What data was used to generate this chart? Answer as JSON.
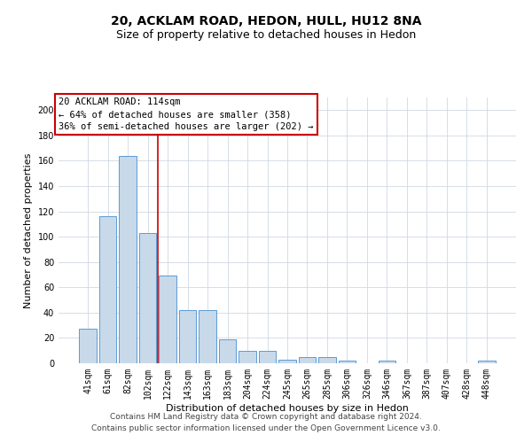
{
  "title": "20, ACKLAM ROAD, HEDON, HULL, HU12 8NA",
  "subtitle": "Size of property relative to detached houses in Hedon",
  "xlabel": "Distribution of detached houses by size in Hedon",
  "ylabel": "Number of detached properties",
  "categories": [
    "41sqm",
    "61sqm",
    "82sqm",
    "102sqm",
    "122sqm",
    "143sqm",
    "163sqm",
    "183sqm",
    "204sqm",
    "224sqm",
    "245sqm",
    "265sqm",
    "285sqm",
    "306sqm",
    "326sqm",
    "346sqm",
    "367sqm",
    "387sqm",
    "407sqm",
    "428sqm",
    "448sqm"
  ],
  "values": [
    27,
    116,
    164,
    103,
    69,
    42,
    42,
    19,
    10,
    10,
    3,
    5,
    5,
    2,
    0,
    2,
    0,
    0,
    0,
    0,
    2
  ],
  "bar_color": "#c8d9ea",
  "bar_edge_color": "#5b9bd5",
  "vline_color": "#cc0000",
  "annotation_text": "20 ACKLAM ROAD: 114sqm\n← 64% of detached houses are smaller (358)\n36% of semi-detached houses are larger (202) →",
  "annotation_box_color": "#ffffff",
  "annotation_box_edge_color": "#cc0000",
  "ylim": [
    0,
    210
  ],
  "yticks": [
    0,
    20,
    40,
    60,
    80,
    100,
    120,
    140,
    160,
    180,
    200
  ],
  "footer1": "Contains HM Land Registry data © Crown copyright and database right 2024.",
  "footer2": "Contains public sector information licensed under the Open Government Licence v3.0.",
  "bg_color": "#ffffff",
  "grid_color": "#d0d8e4",
  "title_fontsize": 10,
  "subtitle_fontsize": 9,
  "axis_label_fontsize": 8,
  "tick_fontsize": 7,
  "annotation_fontsize": 7.5,
  "footer_fontsize": 6.5
}
